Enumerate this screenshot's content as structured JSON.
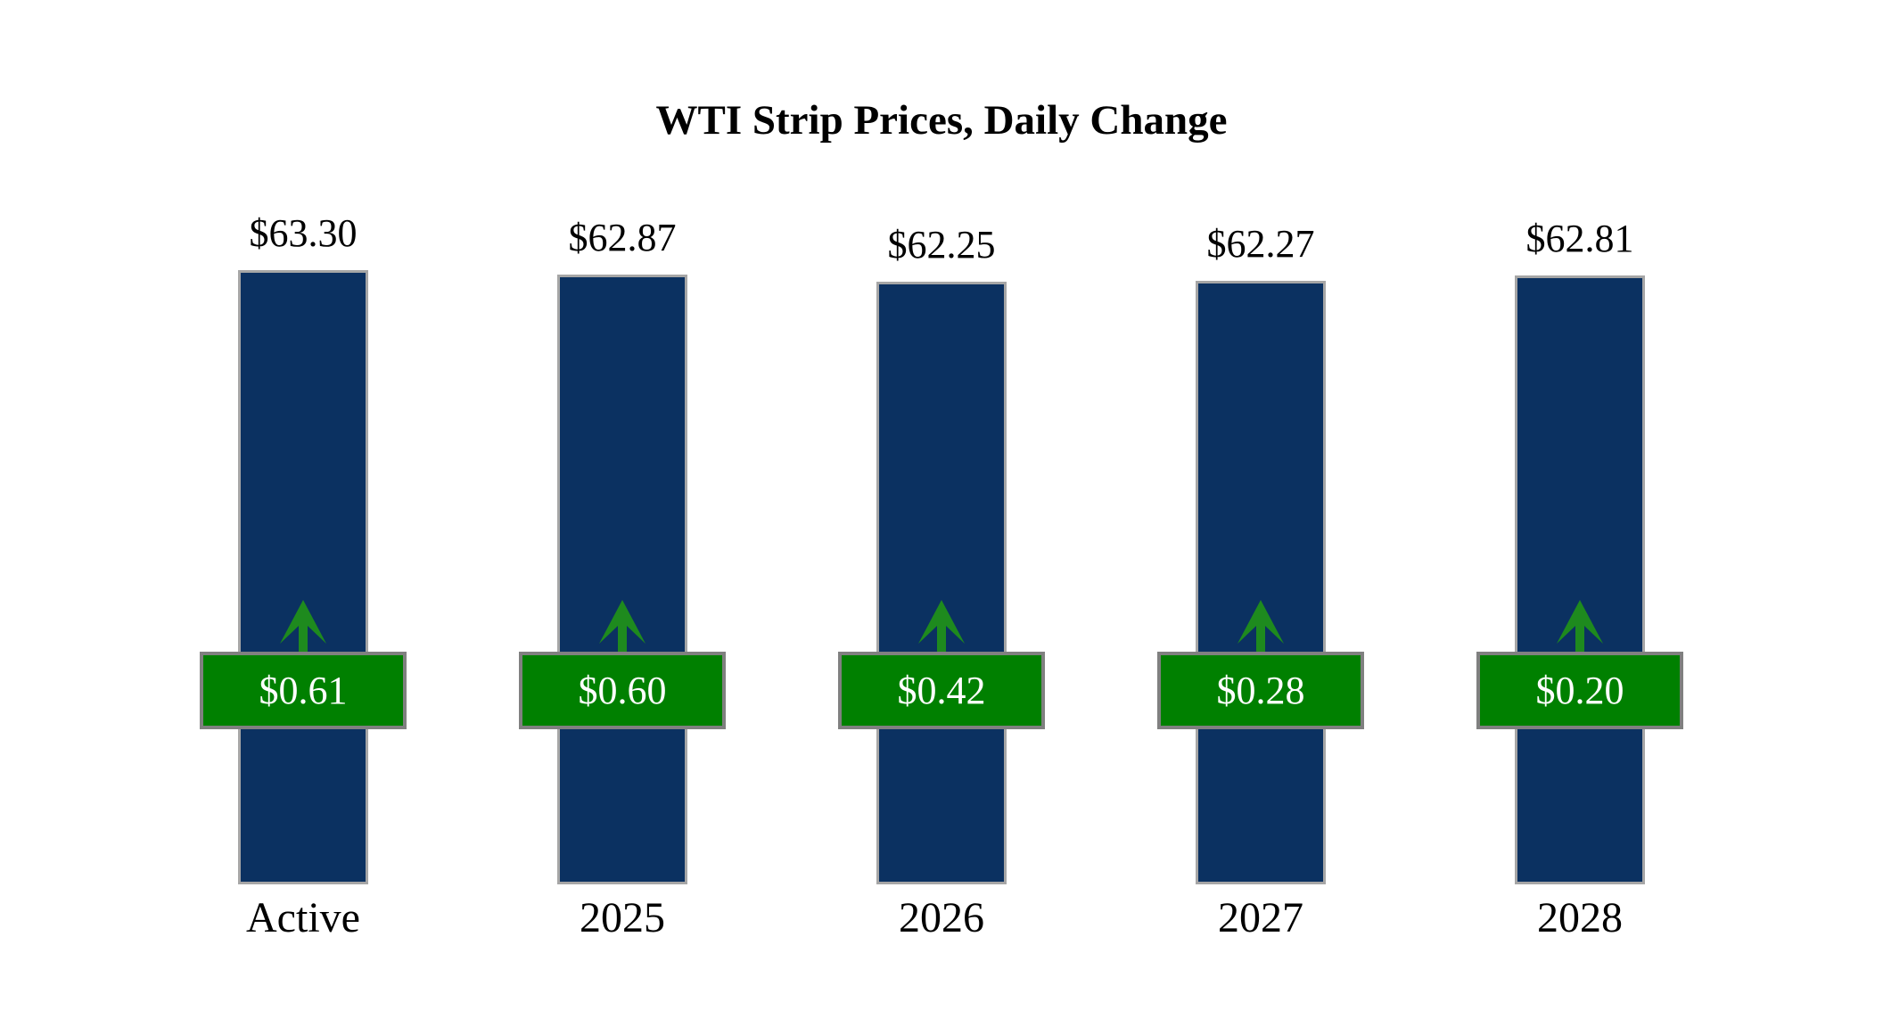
{
  "title": "WTI Strip Prices, Daily Change",
  "chart_data": {
    "type": "bar",
    "title": "WTI Strip Prices, Daily Change",
    "categories": [
      "Active",
      "2025",
      "2026",
      "2027",
      "2028"
    ],
    "series": [
      {
        "name": "WTI Strip Price",
        "values": [
          63.3,
          62.87,
          62.25,
          62.27,
          62.81
        ]
      },
      {
        "name": "Daily Change",
        "values": [
          0.61,
          0.6,
          0.42,
          0.28,
          0.2
        ]
      }
    ],
    "xlabel": "",
    "ylabel": "",
    "grid": false,
    "axes_visible": false,
    "legend_position": "none",
    "columns": [
      {
        "category": "Active",
        "price": 63.3,
        "price_label": "$63.30",
        "change": 0.61,
        "change_label": "$0.61",
        "direction": "up"
      },
      {
        "category": "2025",
        "price": 62.87,
        "price_label": "$62.87",
        "change": 0.6,
        "change_label": "$0.60",
        "direction": "up"
      },
      {
        "category": "2026",
        "price": 62.25,
        "price_label": "$62.25",
        "change": 0.42,
        "change_label": "$0.42",
        "direction": "up"
      },
      {
        "category": "2027",
        "price": 62.27,
        "price_label": "$62.27",
        "change": 0.28,
        "change_label": "$0.28",
        "direction": "up"
      },
      {
        "category": "2028",
        "price": 62.81,
        "price_label": "$62.81",
        "change": 0.2,
        "change_label": "$0.20",
        "direction": "up"
      }
    ],
    "colors": {
      "bar_fill": "#0b3161",
      "bar_border": "#a6a6a6",
      "badge_fill": "#008000",
      "badge_border": "#808080",
      "badge_text": "#ffffff",
      "arrow": "#1e8a1e",
      "label_text": "#000000",
      "background": "#ffffff"
    }
  }
}
